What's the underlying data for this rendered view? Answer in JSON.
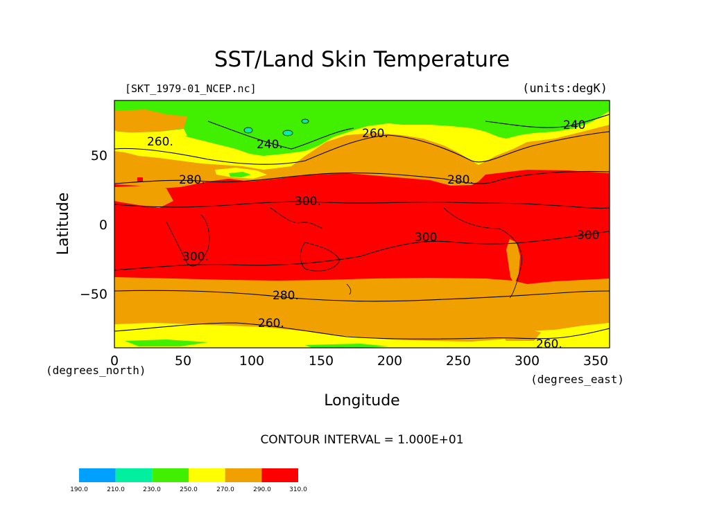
{
  "title": "SST/Land Skin Temperature",
  "file_label": "[SKT_1979-01_NCEP.nc]",
  "units_label": "(units:degK)",
  "y_axis": {
    "label": "Latitude",
    "ticks": [
      "50",
      "0",
      "−50"
    ],
    "tick_values": [
      50,
      0,
      -50
    ],
    "units": "(degrees_north)"
  },
  "x_axis": {
    "label": "Longitude",
    "ticks": [
      "0",
      "50",
      "100",
      "150",
      "200",
      "250",
      "300",
      "350"
    ],
    "tick_values": [
      0,
      50,
      100,
      150,
      200,
      250,
      300,
      350
    ],
    "units": "(degrees_east)"
  },
  "contour_interval": "CONTOUR INTERVAL = 1.000E+01",
  "contour_labels": [
    "260.",
    "240.",
    "260.",
    "240",
    "280.",
    "300.",
    "280.",
    "300",
    "300",
    "300.",
    "280.",
    "260.",
    "260."
  ],
  "colorbar": {
    "ticks": [
      "190.0",
      "210.0",
      "230.0",
      "250.0",
      "270.0",
      "290.0",
      "310.0"
    ],
    "colors": [
      "#00a0ff",
      "#00f0a0",
      "#40f000",
      "#ffff00",
      "#f0a000",
      "#ff0000"
    ]
  },
  "map_colors": {
    "red": "#ff0000",
    "orange": "#f0a000",
    "yellow": "#ffff00",
    "green": "#40f000",
    "cyan": "#00f0a0"
  }
}
